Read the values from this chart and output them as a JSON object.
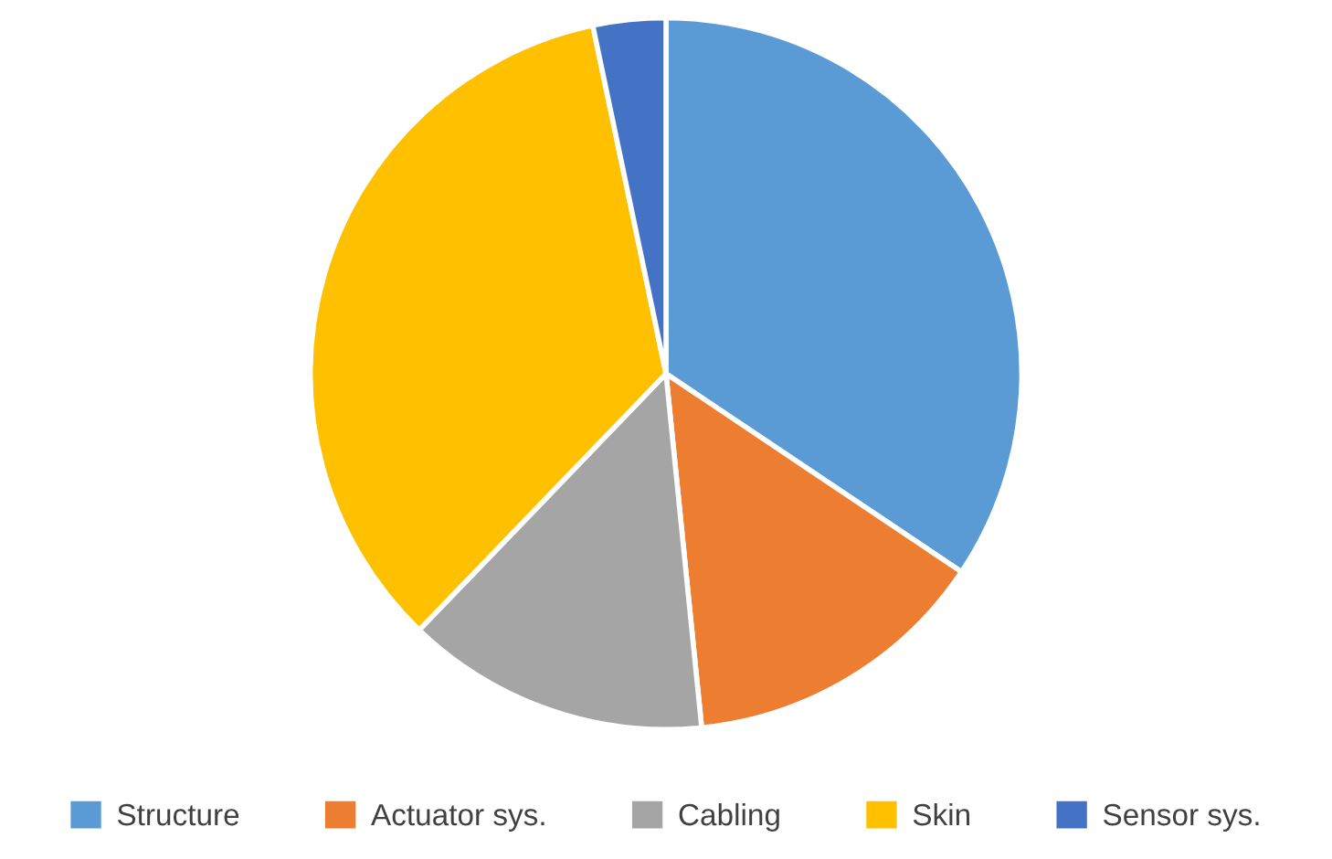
{
  "chart_data": {
    "type": "pie",
    "categories": [
      "Structure",
      "Actuator sys.",
      "Cabling",
      "Skin",
      "Sensor sys."
    ],
    "values": [
      34.4,
      14.0,
      13.8,
      34.5,
      3.3
    ],
    "colors": [
      "#5b9bd5",
      "#ed7d31",
      "#a5a5a5",
      "#ffc000",
      "#4472c4"
    ],
    "legend": "bottom"
  }
}
